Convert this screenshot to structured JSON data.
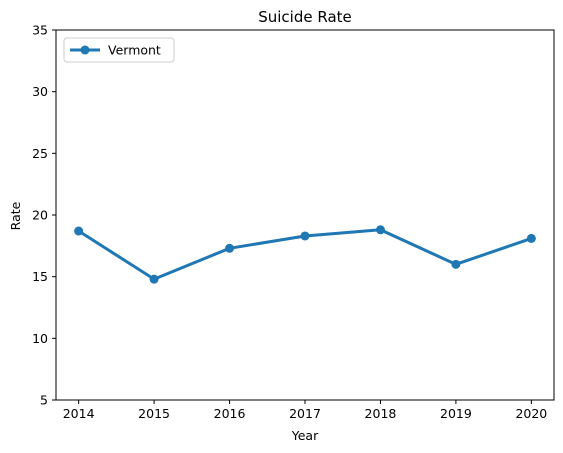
{
  "chart_data": {
    "type": "line",
    "title": "Suicide Rate",
    "xlabel": "Year",
    "ylabel": "Rate",
    "x": [
      "2014",
      "2015",
      "2016",
      "2017",
      "2018",
      "2019",
      "2020"
    ],
    "series": [
      {
        "name": "Vermont",
        "values": [
          18.7,
          14.8,
          17.3,
          18.3,
          18.8,
          16.0,
          18.1
        ],
        "color": "#1f77b4",
        "marker": "circle"
      }
    ],
    "ylim": [
      5,
      35
    ],
    "yticks": [
      5,
      10,
      15,
      20,
      25,
      30,
      35
    ],
    "grid": false,
    "legend_position": "top-left"
  }
}
